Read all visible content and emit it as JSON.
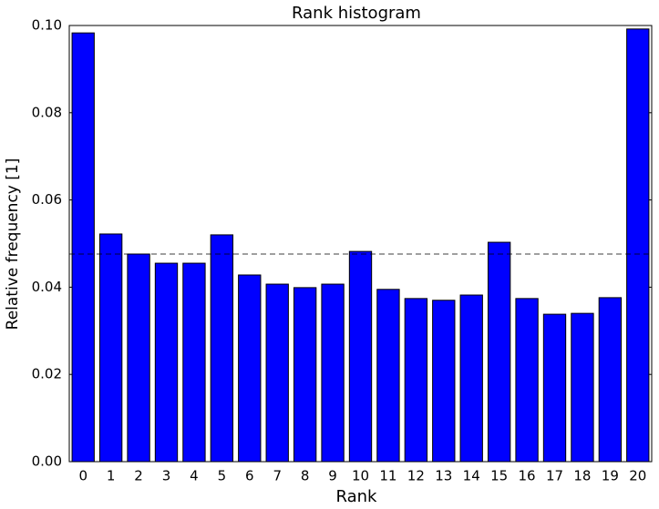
{
  "chart_data": {
    "type": "bar",
    "title": "Rank histogram",
    "xlabel": "Rank",
    "ylabel": "Relative frequency [1]",
    "categories": [
      "0",
      "1",
      "2",
      "3",
      "4",
      "5",
      "6",
      "7",
      "8",
      "9",
      "10",
      "11",
      "12",
      "13",
      "14",
      "15",
      "16",
      "17",
      "18",
      "19",
      "20"
    ],
    "values": [
      0.0983,
      0.0522,
      0.0476,
      0.0455,
      0.0455,
      0.052,
      0.0428,
      0.0407,
      0.0399,
      0.0407,
      0.0482,
      0.0395,
      0.0374,
      0.037,
      0.0382,
      0.0503,
      0.0374,
      0.0338,
      0.034,
      0.0376,
      0.0992
    ],
    "color": "#0000ff",
    "reference_line": 0.0476,
    "ylim": [
      0,
      0.1
    ],
    "yticks": [
      {
        "value": 0,
        "label": "0.00"
      },
      {
        "value": 0.02,
        "label": "0.02"
      },
      {
        "value": 0.04,
        "label": "0.04"
      },
      {
        "value": 0.06,
        "label": "0.06"
      },
      {
        "value": 0.08,
        "label": "0.08"
      },
      {
        "value": 0.1,
        "label": "0.10"
      }
    ],
    "grid": false
  }
}
